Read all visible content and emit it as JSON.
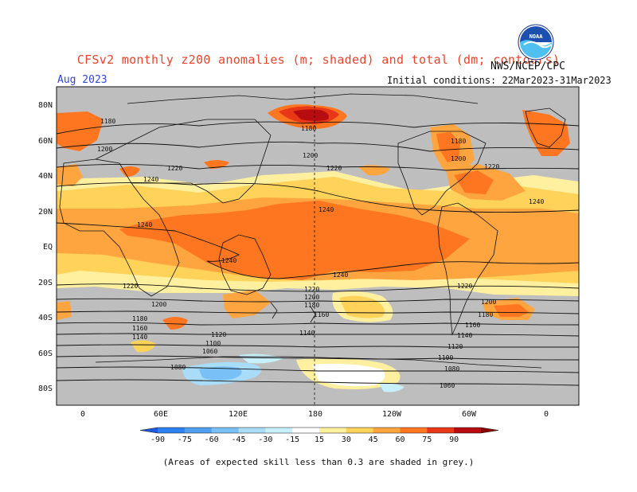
{
  "title": "CFSv2 monthly z200 anomalies (m; shaded) and total (dm; contours)",
  "month": "Aug 2023",
  "initial_conditions": "Initial conditions: 22Mar2023-31Mar2023",
  "agency": "NWS/NCEP/CPC",
  "logo_text": "NOAA",
  "footnote": "(Areas of expected skill less than 0.3 are shaded in grey.)",
  "lat_labels": [
    "80N",
    "60N",
    "40N",
    "20N",
    "EQ",
    "20S",
    "40S",
    "60S",
    "80S"
  ],
  "lon_labels": [
    "0",
    "60E",
    "120E",
    "180",
    "120W",
    "60W",
    "0"
  ],
  "contour_labels": [
    "1180",
    "1200",
    "1220",
    "1240",
    "1240",
    "1240",
    "1220",
    "1200",
    "1180",
    "1160",
    "1140",
    "1120",
    "1100",
    "1080",
    "1060",
    "1180",
    "1200",
    "1220",
    "1240",
    "1240",
    "1240",
    "1220",
    "1200",
    "1180",
    "1160",
    "1140",
    "1120",
    "1100",
    "1080",
    "1060",
    "1180",
    "1200",
    "1220",
    "1180",
    "1200",
    "1220",
    "1160",
    "1140"
  ],
  "colorbar": {
    "ticks": [
      "-90",
      "-75",
      "-60",
      "-45",
      "-30",
      "-15",
      "15",
      "30",
      "45",
      "60",
      "75",
      "90"
    ],
    "colors": [
      "#1e5ae0",
      "#2c82f0",
      "#4fa0f0",
      "#78c0f5",
      "#a8dcf8",
      "#c8f0fa",
      "#ffffff",
      "#fff0a0",
      "#ffd25a",
      "#ffa540",
      "#ff7620",
      "#e83818",
      "#b80c10",
      "#8a0000"
    ]
  },
  "colors": {
    "grey_low_skill": "#bebebe",
    "contour": "#111111",
    "title": "#e8452f",
    "month": "#3346d6"
  }
}
